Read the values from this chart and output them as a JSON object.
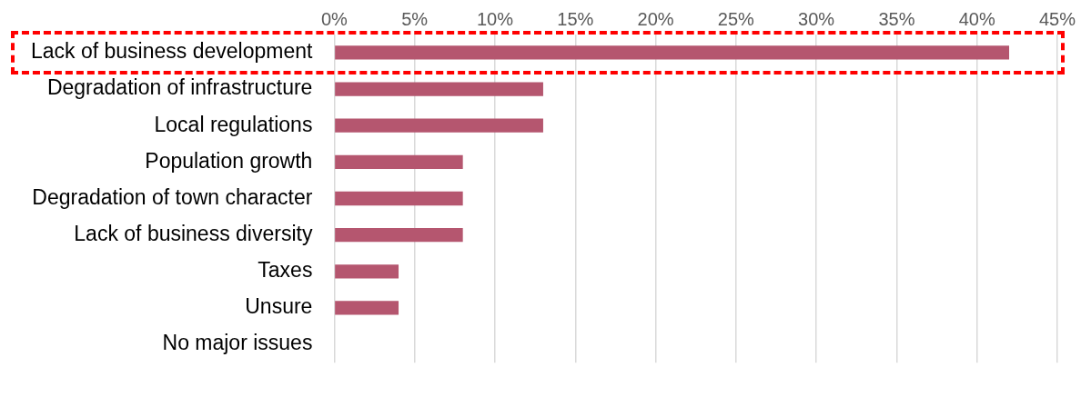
{
  "chart_data": {
    "type": "bar",
    "orientation": "horizontal",
    "categories": [
      "Lack of business development",
      "Degradation of infrastructure",
      "Local regulations",
      "Population growth",
      "Degradation of town character",
      "Lack of business diversity",
      "Taxes",
      "Unsure",
      "No major issues"
    ],
    "values": [
      42,
      13,
      13,
      8,
      8,
      8,
      4,
      4,
      0
    ],
    "color": "#b5566f",
    "xlim": [
      0,
      45
    ],
    "xticks": [
      {
        "value": 0,
        "label": "0%"
      },
      {
        "value": 5,
        "label": "5%"
      },
      {
        "value": 10,
        "label": "10%"
      },
      {
        "value": 15,
        "label": "15%"
      },
      {
        "value": 20,
        "label": "20%"
      },
      {
        "value": 25,
        "label": "25%"
      },
      {
        "value": 30,
        "label": "30%"
      },
      {
        "value": 35,
        "label": "35%"
      },
      {
        "value": 40,
        "label": "40%"
      },
      {
        "value": 45,
        "label": "45%"
      }
    ],
    "grid": "x"
  }
}
